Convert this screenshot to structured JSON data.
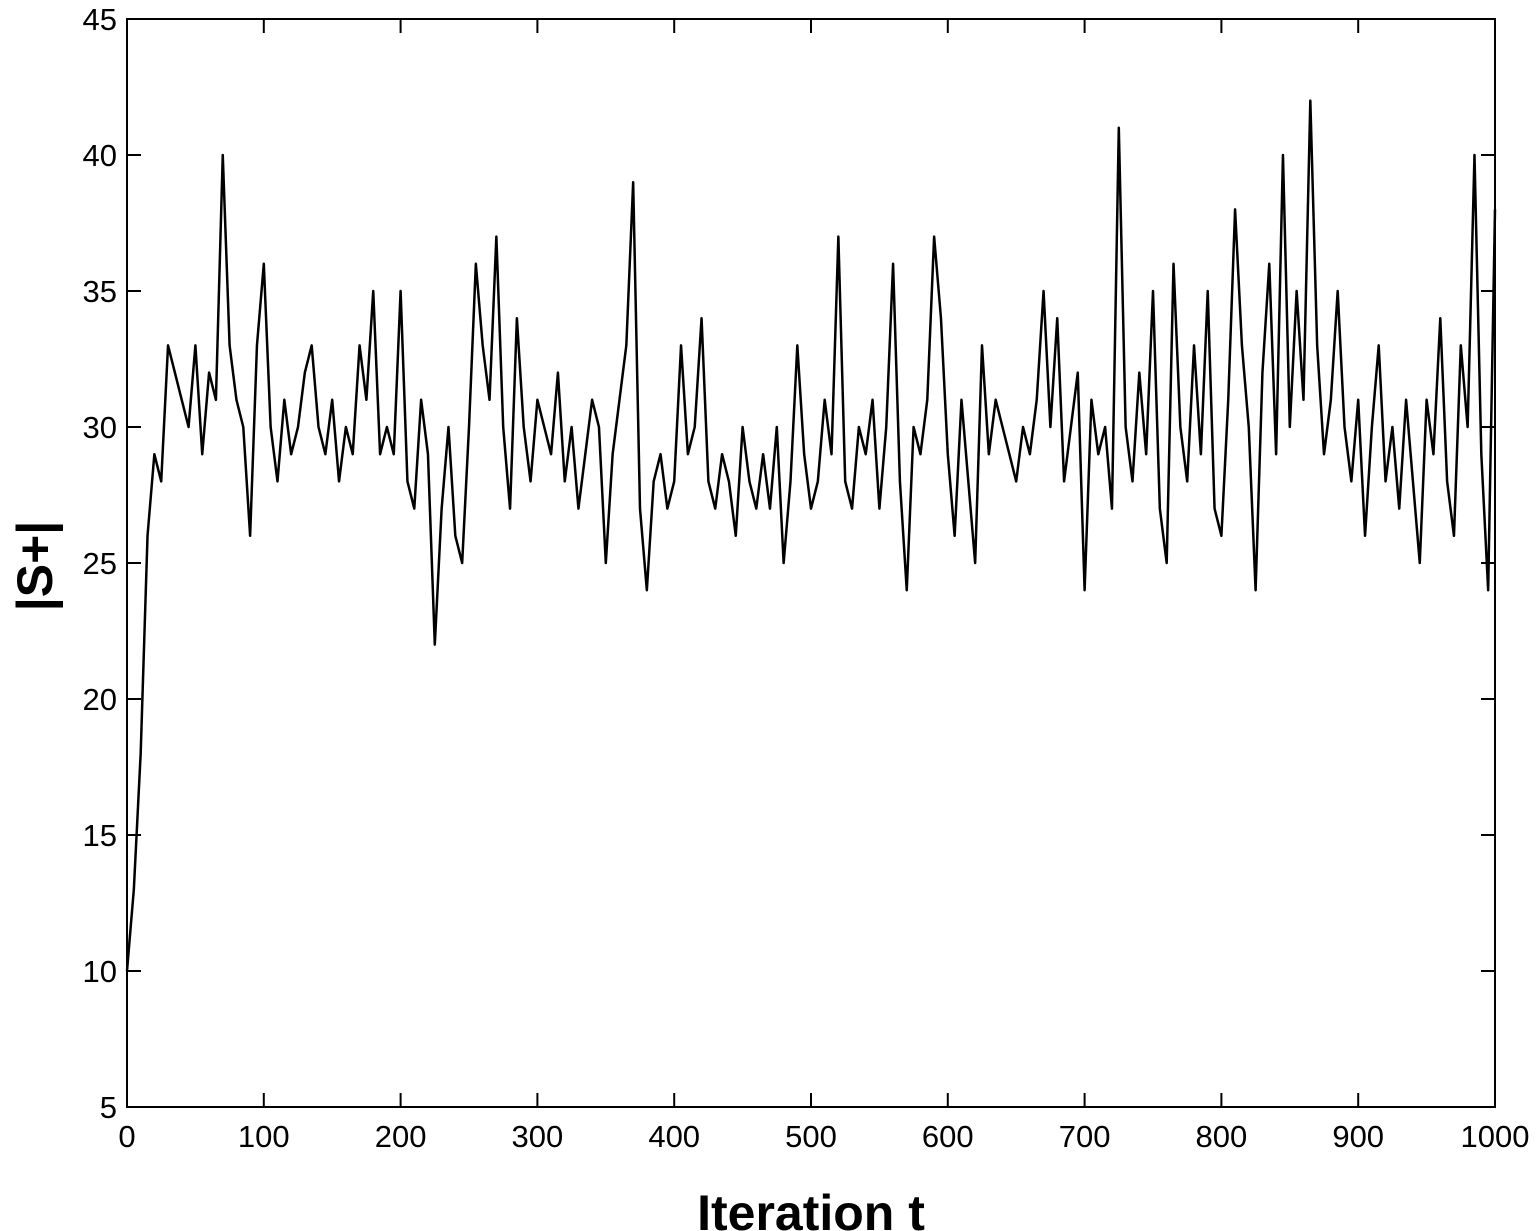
{
  "chart_data": {
    "type": "line",
    "xlabel": "Iteration t",
    "ylabel": "|S+|",
    "xlim": [
      0,
      1000
    ],
    "ylim": [
      5,
      45
    ],
    "xticks": [
      0,
      100,
      200,
      300,
      400,
      500,
      600,
      700,
      800,
      900,
      1000
    ],
    "yticks": [
      5,
      10,
      15,
      20,
      25,
      30,
      35,
      40,
      45
    ],
    "grid": false,
    "x": [
      0,
      5,
      10,
      15,
      20,
      25,
      30,
      35,
      40,
      45,
      50,
      55,
      60,
      65,
      70,
      75,
      80,
      85,
      90,
      95,
      100,
      105,
      110,
      115,
      120,
      125,
      130,
      135,
      140,
      145,
      150,
      155,
      160,
      165,
      170,
      175,
      180,
      185,
      190,
      195,
      200,
      205,
      210,
      215,
      220,
      225,
      230,
      235,
      240,
      245,
      250,
      255,
      260,
      265,
      270,
      275,
      280,
      285,
      290,
      295,
      300,
      305,
      310,
      315,
      320,
      325,
      330,
      335,
      340,
      345,
      350,
      355,
      360,
      365,
      370,
      375,
      380,
      385,
      390,
      395,
      400,
      405,
      410,
      415,
      420,
      425,
      430,
      435,
      440,
      445,
      450,
      455,
      460,
      465,
      470,
      475,
      480,
      485,
      490,
      495,
      500,
      505,
      510,
      515,
      520,
      525,
      530,
      535,
      540,
      545,
      550,
      555,
      560,
      565,
      570,
      575,
      580,
      585,
      590,
      595,
      600,
      605,
      610,
      615,
      620,
      625,
      630,
      635,
      640,
      645,
      650,
      655,
      660,
      665,
      670,
      675,
      680,
      685,
      690,
      695,
      700,
      705,
      710,
      715,
      720,
      725,
      730,
      735,
      740,
      745,
      750,
      755,
      760,
      765,
      770,
      775,
      780,
      785,
      790,
      795,
      800,
      805,
      810,
      815,
      820,
      825,
      830,
      835,
      840,
      845,
      850,
      855,
      860,
      865,
      870,
      875,
      880,
      885,
      890,
      895,
      900,
      905,
      910,
      915,
      920,
      925,
      930,
      935,
      940,
      945,
      950,
      955,
      960,
      965,
      970,
      975,
      980,
      985,
      990,
      995,
      1000
    ],
    "series": [
      {
        "color": "#000000",
        "values": [
          10,
          13,
          18,
          26,
          29,
          28,
          33,
          32,
          31,
          30,
          33,
          29,
          32,
          31,
          40,
          33,
          31,
          30,
          26,
          33,
          36,
          30,
          28,
          31,
          29,
          30,
          32,
          33,
          30,
          29,
          31,
          28,
          30,
          29,
          33,
          31,
          35,
          29,
          30,
          29,
          35,
          28,
          27,
          31,
          29,
          22,
          27,
          30,
          26,
          25,
          30,
          36,
          33,
          31,
          37,
          30,
          27,
          34,
          30,
          28,
          31,
          30,
          29,
          32,
          28,
          30,
          27,
          29,
          31,
          30,
          25,
          29,
          31,
          33,
          39,
          27,
          24,
          28,
          29,
          27,
          28,
          33,
          29,
          30,
          34,
          28,
          27,
          29,
          28,
          26,
          30,
          28,
          27,
          29,
          27,
          30,
          25,
          28,
          33,
          29,
          27,
          28,
          31,
          29,
          37,
          28,
          27,
          30,
          29,
          31,
          27,
          30,
          36,
          28,
          24,
          30,
          29,
          31,
          37,
          34,
          29,
          26,
          31,
          28,
          25,
          33,
          29,
          31,
          30,
          29,
          28,
          30,
          29,
          31,
          35,
          30,
          34,
          28,
          30,
          32,
          24,
          31,
          29,
          30,
          27,
          41,
          30,
          28,
          32,
          29,
          35,
          27,
          25,
          36,
          30,
          28,
          33,
          29,
          35,
          27,
          26,
          31,
          38,
          33,
          30,
          24,
          32,
          36,
          29,
          40,
          30,
          35,
          31,
          42,
          33,
          29,
          31,
          35,
          30,
          28,
          31,
          26,
          30,
          33,
          28,
          30,
          27,
          31,
          28,
          25,
          31,
          29,
          34,
          28,
          26,
          33,
          30,
          40,
          29,
          24,
          38
        ]
      }
    ]
  }
}
